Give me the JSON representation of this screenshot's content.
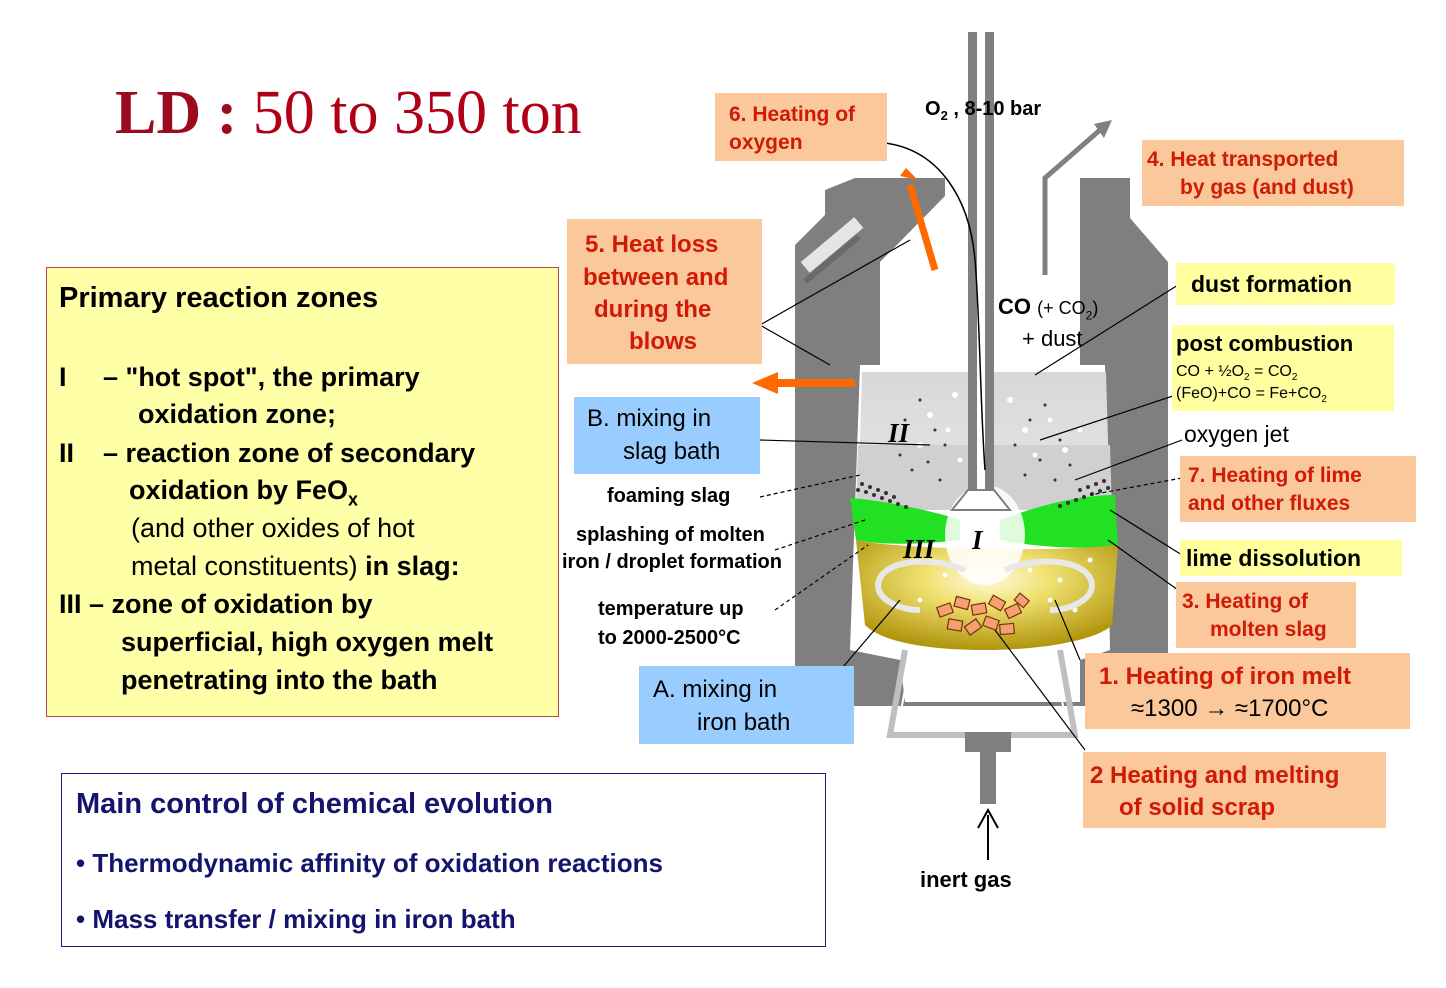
{
  "title": {
    "prefix": "LD :",
    "rest": "50 to 350 ton"
  },
  "zones": {
    "heading": "Primary reaction zones",
    "l1_num": "I",
    "l1_a": "– \"hot spot\",  the primary",
    "l1_b": "oxidation zone;",
    "l2_num": "II",
    "l2_a": "– reaction zone of secondary",
    "l2_b": "oxidation by  FeO",
    "l2_sub": "x",
    "l2_c": "(and other oxides of hot",
    "l2_d": "metal constituents)",
    "l2_d2": "in slag:",
    "l3_a": "III – zone of oxidation by",
    "l3_b": "superficial, high oxygen melt",
    "l3_c": "penetrating into the bath"
  },
  "control": {
    "heading": "Main control of chemical evolution",
    "b1": "• Thermodynamic affinity of oxidation reactions",
    "b2": "• Mass transfer / mixing in iron bath"
  },
  "labels": {
    "o2_main": "O",
    "o2_sub": "2",
    "o2_rest": " , 8-10 bar",
    "h6_a": "6. Heating of",
    "h6_b": "oxygen",
    "h4_a": "4.  Heat transported",
    "h4_b": "by gas (and dust)",
    "h5_a": "5.  Heat loss",
    "h5_b": "between and",
    "h5_c": "during the",
    "h5_d": "blows",
    "dust": "dust formation",
    "co_a": "CO",
    "co_b": "(+ CO",
    "co_sub": "2",
    "co_c": ")",
    "co_d": "+ dust",
    "pc_a": "post combustion",
    "pc_b": "CO + ½O",
    "pc_b_sub": "2",
    "pc_b2": " = CO",
    "pc_b_sub2": "2",
    "pc_c": "(FeO)+CO = Fe+CO",
    "pc_c_sub": "2",
    "mix_b_a": "B.  mixing in",
    "mix_b_b": "slag bath",
    "oxygen_jet": "oxygen jet",
    "h7_a": "7. Heating of lime",
    "h7_b": "and other fluxes",
    "foaming": "foaming slag",
    "splash_a": "splashing of molten",
    "splash_b": "iron / droplet formation",
    "lime": "lime dissolution",
    "h3_a": "3. Heating of",
    "h3_b": "molten slag",
    "temp_a": "temperature up",
    "temp_b": "to 2000-2500°C",
    "h1_a": "1.  Heating of iron melt",
    "h1_b": "≈1300 → ≈1700°C",
    "mix_a_a": "A.  mixing in",
    "mix_a_b": "iron bath",
    "h2_a": "2  Heating and melting",
    "h2_b": "of solid scrap",
    "inert": "inert gas",
    "zone_I": "I",
    "zone_II": "II",
    "zone_III": "III"
  },
  "colors": {
    "slag_green": "#22e022",
    "melt_yellow": "#e8d000",
    "refractory": "#808080",
    "arrow": "#ff6a00"
  }
}
